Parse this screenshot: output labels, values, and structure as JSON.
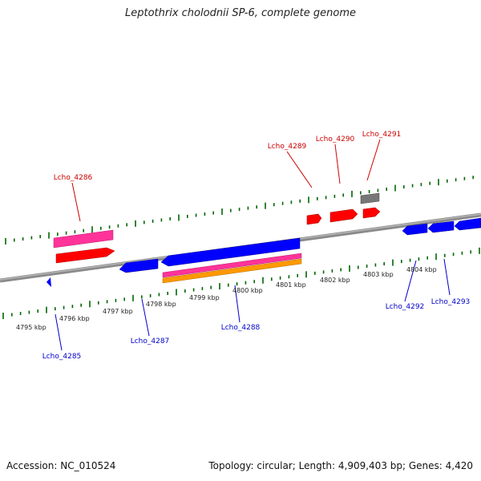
{
  "title": "Leptothrix cholodnii SP-6, complete genome",
  "footer": {
    "accession": "Accession: NC_010524",
    "summary": "Topology: circular; Length: 4,909,403 bp; Genes: 4,420"
  },
  "colors": {
    "forward_gene": "#ff0000",
    "reverse_gene": "#0000ff",
    "pink_gene": "#ff3399",
    "orange_gene": "#ff9900",
    "gray_gene": "#808080",
    "tick": "#006600",
    "backbone": "#808080",
    "forward_label": "#cc0000",
    "reverse_label": "#0000cc"
  },
  "scale_ticks": [
    "4795 kbp",
    "4796 kbp",
    "4797 kbp",
    "4798 kbp",
    "4799 kbp",
    "4800 kbp",
    "4801 kbp",
    "4802 kbp",
    "4803 kbp",
    "4804 kbp"
  ],
  "forward_labels": [
    "Lcho_4286",
    "Lcho_4289",
    "Lcho_4290",
    "Lcho_4291"
  ],
  "reverse_labels": [
    "Lcho_4285",
    "Lcho_4287",
    "Lcho_4288",
    "Lcho_4292",
    "Lcho_4293"
  ]
}
